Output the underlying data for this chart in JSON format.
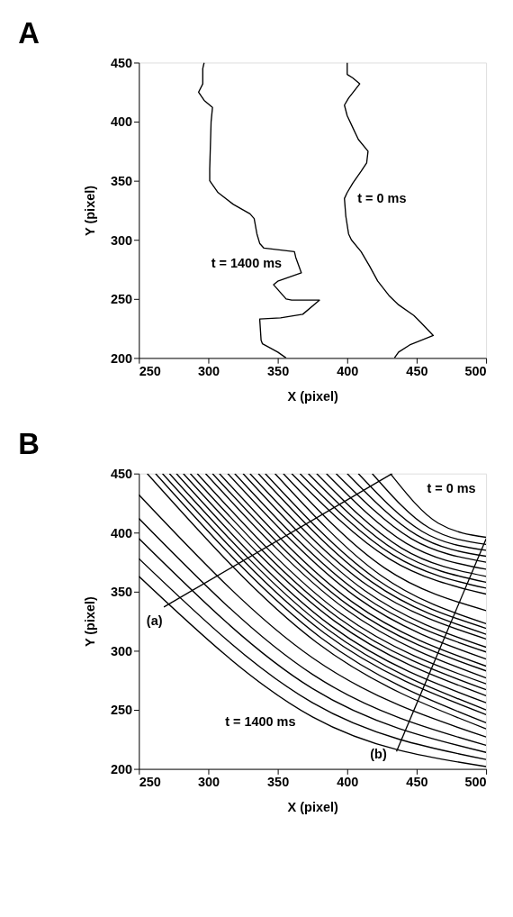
{
  "chart_data": [
    {
      "type": "line",
      "title": "A",
      "xlabel": "X (pixel)",
      "ylabel": "Y (pixel)",
      "xlim": [
        250,
        500
      ],
      "ylim": [
        200,
        450
      ],
      "xticks": [
        250,
        300,
        350,
        400,
        450,
        500
      ],
      "yticks": [
        200,
        250,
        300,
        350,
        400,
        450
      ],
      "grid": false,
      "legend": false,
      "marker": "none",
      "line_style": "solid",
      "annotations": [
        "t = 0 ms",
        "t = 1400 ms"
      ],
      "series": [
        {
          "color": "#000000",
          "x": [
            434,
            437,
            445,
            462,
            453,
            448,
            437,
            430,
            422,
            416,
            410,
            403,
            401,
            399,
            398,
            400,
            404,
            410,
            414,
            415,
            408,
            404,
            400,
            398,
            401,
            409,
            404,
            400,
            400
          ],
          "values": [
            200,
            205,
            211,
            219,
            230,
            236,
            245,
            253,
            265,
            278,
            290,
            300,
            305,
            320,
            335,
            340,
            348,
            358,
            365,
            375,
            385,
            395,
            405,
            414,
            420,
            432,
            437,
            440,
            450
          ]
        },
        {
          "color": "#000000",
          "x": [
            356,
            350,
            339,
            338,
            337,
            352,
            368,
            380,
            360,
            356,
            347,
            350,
            367,
            363,
            362,
            340,
            337,
            335,
            333,
            330,
            318,
            307,
            301,
            301,
            302,
            303,
            297,
            293,
            296,
            296,
            297
          ],
          "values": [
            200,
            205,
            212,
            215,
            233,
            234,
            237,
            249,
            249,
            250,
            262,
            265,
            272,
            285,
            290,
            293,
            297,
            305,
            318,
            322,
            330,
            340,
            350,
            360,
            400,
            412,
            418,
            425,
            432,
            445,
            450
          ]
        }
      ]
    },
    {
      "type": "line",
      "title": "B",
      "xlabel": "X (pixel)",
      "ylabel": "Y (pixel)",
      "xlim": [
        250,
        500
      ],
      "ylim": [
        200,
        450
      ],
      "xticks": [
        250,
        300,
        350,
        400,
        450,
        500
      ],
      "yticks": [
        200,
        250,
        300,
        350,
        400,
        450
      ],
      "grid": false,
      "legend": false,
      "marker": "none",
      "line_style": "solid",
      "annotations": [
        "t = 0 ms",
        "t = 1400 ms",
        "(a)",
        "(b)"
      ],
      "series": [
        {
          "color": "#000000",
          "x": [
            268,
            432.5
          ],
          "values": [
            337,
            450
          ]
        },
        {
          "color": "#000000",
          "x": [
            435.5,
            500
          ],
          "values": [
            214.7,
            394.7
          ]
        },
        {
          "color": "#000000",
          "x": [
            431,
            465.5,
            500
          ],
          "values": [
            450,
            408,
            396
          ]
        },
        {
          "color": "#000000",
          "x": [
            418,
            459,
            500
          ],
          "values": [
            450,
            404,
            390
          ]
        },
        {
          "color": "#000000",
          "x": [
            408,
            454,
            500
          ],
          "values": [
            450,
            401,
            385
          ]
        },
        {
          "color": "#000000",
          "x": [
            400,
            450,
            500
          ],
          "values": [
            450,
            398,
            380
          ]
        },
        {
          "color": "#000000",
          "x": [
            392,
            446,
            500
          ],
          "values": [
            450,
            395,
            375
          ]
        },
        {
          "color": "#000000",
          "x": [
            385,
            442.5,
            500
          ],
          "values": [
            450,
            391,
            369
          ]
        },
        {
          "color": "#000000",
          "x": [
            378,
            439,
            500
          ],
          "values": [
            450,
            387,
            363
          ]
        },
        {
          "color": "#000000",
          "x": [
            372,
            436,
            500
          ],
          "values": [
            450,
            384,
            358
          ]
        },
        {
          "color": "#000000",
          "x": [
            366,
            433,
            500
          ],
          "values": [
            450,
            381,
            353
          ]
        },
        {
          "color": "#000000",
          "x": [
            360,
            430,
            500
          ],
          "values": [
            450,
            378,
            348
          ]
        },
        {
          "color": "#000000",
          "x": [
            354,
            427,
            500
          ],
          "values": [
            450,
            370,
            334
          ]
        },
        {
          "color": "#000000",
          "x": [
            348,
            424,
            500
          ],
          "values": [
            450,
            364,
            323
          ]
        },
        {
          "color": "#000000",
          "x": [
            341,
            420.5,
            500
          ],
          "values": [
            450,
            361,
            319
          ]
        },
        {
          "color": "#000000",
          "x": [
            336,
            418,
            500
          ],
          "values": [
            450,
            358,
            314
          ]
        },
        {
          "color": "#000000",
          "x": [
            330,
            415,
            500
          ],
          "values": [
            450,
            355,
            310
          ]
        },
        {
          "color": "#000000",
          "x": [
            325,
            412.5,
            500
          ],
          "values": [
            450,
            351,
            303
          ]
        },
        {
          "color": "#000000",
          "x": [
            319,
            409.5,
            500
          ],
          "values": [
            450,
            348,
            299
          ]
        },
        {
          "color": "#000000",
          "x": [
            314,
            407,
            500
          ],
          "values": [
            450,
            345,
            293
          ]
        },
        {
          "color": "#000000",
          "x": [
            308,
            404,
            500
          ],
          "values": [
            450,
            341,
            287
          ]
        },
        {
          "color": "#000000",
          "x": [
            303,
            401.5,
            500
          ],
          "values": [
            450,
            338,
            283
          ]
        },
        {
          "color": "#000000",
          "x": [
            298,
            399,
            500
          ],
          "values": [
            450,
            335,
            277
          ]
        },
        {
          "color": "#000000",
          "x": [
            292,
            396,
            500
          ],
          "values": [
            450,
            331,
            272
          ]
        },
        {
          "color": "#000000",
          "x": [
            287,
            393.5,
            500
          ],
          "values": [
            450,
            328,
            267
          ]
        },
        {
          "color": "#000000",
          "x": [
            282,
            391,
            500
          ],
          "values": [
            450,
            325,
            262
          ]
        },
        {
          "color": "#000000",
          "x": [
            277,
            388.5,
            500
          ],
          "values": [
            450,
            321,
            256
          ]
        },
        {
          "color": "#000000",
          "x": [
            272,
            386,
            500
          ],
          "values": [
            450,
            318,
            250
          ]
        },
        {
          "color": "#000000",
          "x": [
            267,
            383.5,
            500
          ],
          "values": [
            450,
            315,
            246
          ]
        },
        {
          "color": "#000000",
          "x": [
            262,
            381,
            500
          ],
          "values": [
            450,
            311,
            239
          ]
        },
        {
          "color": "#000000",
          "x": [
            256,
            378,
            500
          ],
          "values": [
            450,
            307,
            234
          ]
        },
        {
          "color": "#000000",
          "x": [
            250,
            375,
            500
          ],
          "values": [
            432,
            294,
            227
          ]
        },
        {
          "color": "#000000",
          "x": [
            250,
            375,
            500
          ],
          "values": [
            412,
            280,
            220
          ]
        },
        {
          "color": "#000000",
          "x": [
            250,
            375,
            500
          ],
          "values": [
            395,
            268,
            214
          ]
        },
        {
          "color": "#000000",
          "x": [
            250,
            375,
            500
          ],
          "values": [
            378,
            256,
            208
          ]
        },
        {
          "color": "#000000",
          "x": [
            250,
            375,
            500
          ],
          "values": [
            363,
            244,
            202
          ]
        }
      ]
    }
  ]
}
